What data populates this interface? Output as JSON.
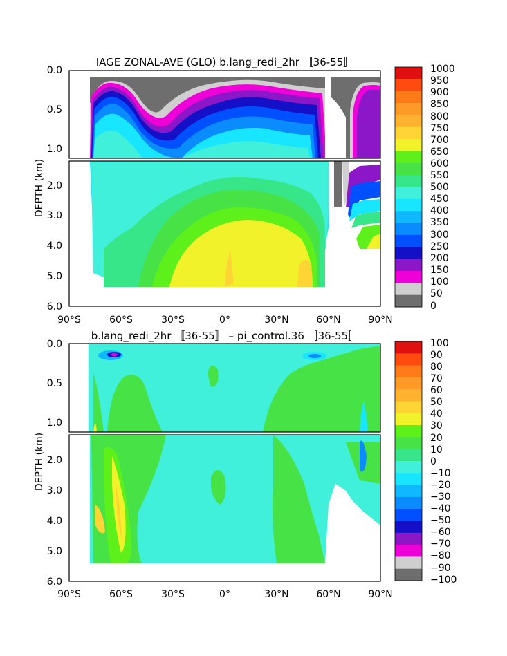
{
  "chart_data": [
    {
      "type": "heatmap",
      "title": "IAGE ZONAL-AVE (GLO) b.lang_redi_2hr 〚36-55〛",
      "ylabel": "DEPTH (km)",
      "xlabel": "",
      "x_ticks": [
        "90°S",
        "60°S",
        "30°S",
        "0°",
        "30°N",
        "60°N",
        "90°N"
      ],
      "y_ticks_upper": [
        "0.0",
        "0.5",
        "1.0"
      ],
      "y_ticks_lower": [
        "2.0",
        "3.0",
        "4.0",
        "5.0",
        "6.0"
      ],
      "xlim": [
        -90,
        90
      ],
      "ylim_km": [
        0,
        6
      ],
      "colorbar_levels": [
        "0",
        "50",
        "100",
        "150",
        "200",
        "250",
        "300",
        "350",
        "400",
        "450",
        "500",
        "550",
        "600",
        "650",
        "700",
        "750",
        "800",
        "850",
        "900",
        "950",
        "1000"
      ],
      "colors": [
        "#6e6e6e",
        "#cfcfcf",
        "#f000d8",
        "#8c17c9",
        "#1410c8",
        "#0050ff",
        "#0a8cff",
        "#10b8ff",
        "#18e6ff",
        "#40f0da",
        "#38e68a",
        "#46e246",
        "#5ef01a",
        "#f2f22a",
        "#ffd535",
        "#ffb230",
        "#ff9a28",
        "#ff7a18",
        "#ff4a10",
        "#e01010"
      ]
    },
    {
      "type": "heatmap",
      "title": "b.lang_redi_2hr 〚36-55〛 – pi_control.36 〚36-55〛",
      "ylabel": "DEPTH (km)",
      "xlabel": "",
      "x_ticks": [
        "90°S",
        "60°S",
        "30°S",
        "0°",
        "30°N",
        "60°N",
        "90°N"
      ],
      "y_ticks_upper": [
        "0.0",
        "0.5",
        "1.0"
      ],
      "y_ticks_lower": [
        "2.0",
        "3.0",
        "4.0",
        "5.0",
        "6.0"
      ],
      "xlim": [
        -90,
        90
      ],
      "ylim_km": [
        0,
        6
      ],
      "colorbar_levels": [
        "100",
        "90",
        "80",
        "70",
        "60",
        "50",
        "40",
        "30",
        "20",
        "10",
        "0",
        "−10",
        "−20",
        "−30",
        "−40",
        "−50",
        "−60",
        "−70",
        "−80",
        "−90",
        "−100"
      ],
      "colors": [
        "#e01010",
        "#ff4a10",
        "#ff7a18",
        "#ff9a28",
        "#ffb230",
        "#ffd535",
        "#f2f22a",
        "#5ef01a",
        "#46e246",
        "#38e68a",
        "#40f0da",
        "#18e6ff",
        "#10b8ff",
        "#0a8cff",
        "#0050ff",
        "#1410c8",
        "#8c17c9",
        "#f000d8",
        "#cfcfcf",
        "#6e6e6e"
      ]
    }
  ]
}
